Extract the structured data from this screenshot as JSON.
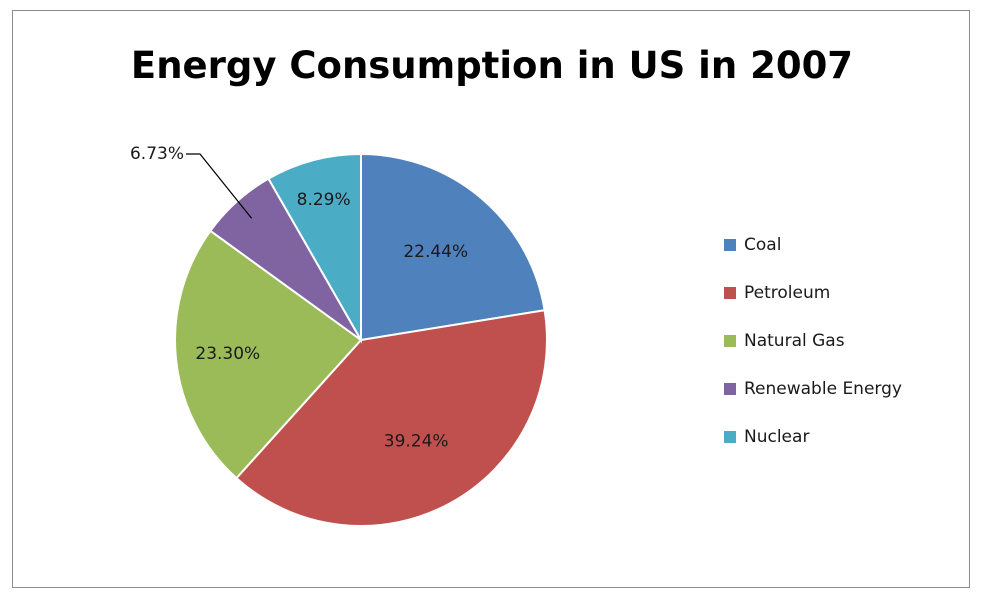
{
  "chart_data": {
    "type": "pie",
    "title": "Energy Consumption in US in 2007",
    "slices": [
      {
        "name": "Coal",
        "value": 22.44,
        "label": "22.44%",
        "color": "#4F81BD"
      },
      {
        "name": "Petroleum",
        "value": 39.24,
        "label": "39.24%",
        "color": "#C0504D"
      },
      {
        "name": "Natural Gas",
        "value": 23.3,
        "label": "23.30%",
        "color": "#9BBB59"
      },
      {
        "name": "Renewable Energy",
        "value": 6.73,
        "label": "6.73%",
        "color": "#8064A2"
      },
      {
        "name": "Nuclear",
        "value": 8.29,
        "label": "8.29%",
        "color": "#4BACC6"
      }
    ],
    "legend_position": "right"
  }
}
